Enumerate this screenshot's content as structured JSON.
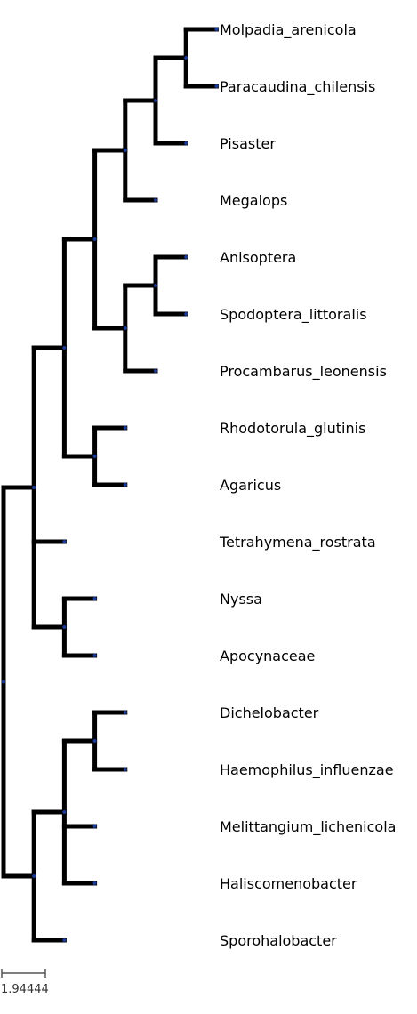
{
  "colors": {
    "branch": "#000000",
    "node": "#1a3a9a",
    "scale": "#555555"
  },
  "leaves": [
    {
      "id": "Molpadia_arenicola",
      "label": "Molpadia_arenicola"
    },
    {
      "id": "Paracaudina_chilensis",
      "label": "Paracaudina_chilensis"
    },
    {
      "id": "Pisaster",
      "label": "Pisaster"
    },
    {
      "id": "Megalops",
      "label": "Megalops"
    },
    {
      "id": "Anisoptera",
      "label": "Anisoptera"
    },
    {
      "id": "Spodoptera_littoralis",
      "label": "Spodoptera_littoralis"
    },
    {
      "id": "Procambarus_leonensis",
      "label": "Procambarus_leonensis"
    },
    {
      "id": "Rhodotorula_glutinis",
      "label": "Rhodotorula_glutinis"
    },
    {
      "id": "Agaricus",
      "label": "Agaricus"
    },
    {
      "id": "Tetrahymena_rostrata",
      "label": "Tetrahymena_rostrata"
    },
    {
      "id": "Nyssa",
      "label": "Nyssa"
    },
    {
      "id": "Apocynaceae",
      "label": "Apocynaceae"
    },
    {
      "id": "Dichelobacter",
      "label": "Dichelobacter"
    },
    {
      "id": "Haemophilus_influenzae",
      "label": "Haemophilus_influenzae"
    },
    {
      "id": "Melittangium_lichenicola",
      "label": "Melittangium_lichenicola"
    },
    {
      "id": "Haliscomenobacter",
      "label": "Haliscomenobacter"
    },
    {
      "id": "Sporohalobacter",
      "label": "Sporohalobacter"
    }
  ],
  "tree": [
    "root",
    [
      [
        "n1",
        [
          [
            "n2",
            [
              [
                "n3",
                [
                  [
                    "n4",
                    [
                      [
                        "n5",
                        [
                          [
                            "n6",
                            [
                              "Molpadia_arenicola",
                              "Paracaudina_chilensis"
                            ]
                          ],
                          "Pisaster"
                        ]
                      ],
                      "Megalops"
                    ]
                  ],
                  [
                    "n7",
                    [
                      [
                        "n8",
                        [
                          "Anisoptera",
                          "Spodoptera_littoralis"
                        ]
                      ],
                      "Procambarus_leonensis"
                    ]
                  ]
                ]
              ],
              [
                "n9",
                [
                  "Rhodotorula_glutinis",
                  "Agaricus"
                ]
              ]
            ]
          ],
          "Tetrahymena_rostrata",
          [
            "n10",
            [
              "Nyssa",
              "Apocynaceae"
            ]
          ]
        ]
      ],
      [
        "n11",
        [
          [
            "n12",
            [
              [
                "n13",
                [
                  "Dichelobacter",
                  "Haemophilus_influenzae"
                ]
              ],
              "Melittangium_lichenicola",
              "Haliscomenobacter"
            ]
          ],
          "Sporohalobacter"
        ]
      ]
    ]
  ],
  "scale_bar": {
    "label": "1.94444"
  }
}
